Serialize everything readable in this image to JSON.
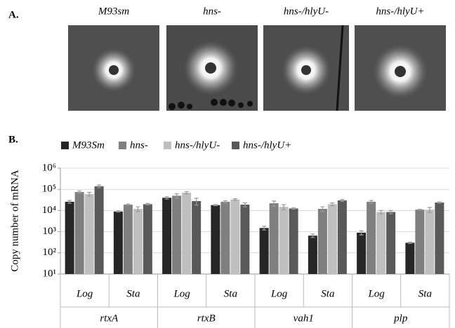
{
  "panel_a": {
    "label": "A.",
    "images": [
      "M93sm",
      "hns-",
      "hns-/hlyU-",
      "hns-/hlyU+"
    ]
  },
  "panel_b": {
    "label": "B."
  },
  "chart_data": {
    "type": "bar",
    "ylabel": "Copy number of mRNA",
    "log_scale": true,
    "grid": true,
    "categories": [
      "Log",
      "Sta",
      "Log",
      "Sta",
      "Log",
      "Sta",
      "Log",
      "Sta"
    ],
    "groups": [
      "rtxA",
      "rtxB",
      "vah1",
      "plp"
    ],
    "ylim": [
      10,
      1000000
    ],
    "yticks": [
      {
        "value": 10,
        "label": "10¹"
      },
      {
        "value": 100,
        "label": "10²"
      },
      {
        "value": 1000,
        "label": "10³"
      },
      {
        "value": 10000,
        "label": "10⁴"
      },
      {
        "value": 100000,
        "label": "10⁵"
      },
      {
        "value": 1000000,
        "label": "10⁶"
      }
    ],
    "series": [
      {
        "name": "M93Sm",
        "color": "#262626",
        "values": [
          26000,
          9000,
          40000,
          18000,
          1500,
          650,
          900,
          300
        ],
        "errors": [
          4000,
          500,
          5000,
          1000,
          300,
          120,
          200,
          20
        ]
      },
      {
        "name": "hns-",
        "color": "#7f7f7f",
        "values": [
          75000,
          19000,
          50000,
          26000,
          22000,
          12000,
          26000,
          11000
        ],
        "errors": [
          10000,
          1500,
          12000,
          3000,
          6000,
          3000,
          4000,
          500
        ]
      },
      {
        "name": "hns-/hlyU-",
        "color": "#bfbfbf",
        "values": [
          60000,
          12000,
          70000,
          33000,
          15000,
          20000,
          8500,
          11000
        ],
        "errors": [
          12000,
          3000,
          8000,
          3000,
          4000,
          3000,
          1500,
          3000
        ]
      },
      {
        "name": "hns-/hlyU+",
        "color": "#595959",
        "values": [
          140000,
          20000,
          28000,
          19000,
          12500,
          30000,
          8500,
          24000
        ],
        "errors": [
          20000,
          1500,
          10000,
          4000,
          800,
          3000,
          1500,
          1500
        ]
      }
    ]
  }
}
